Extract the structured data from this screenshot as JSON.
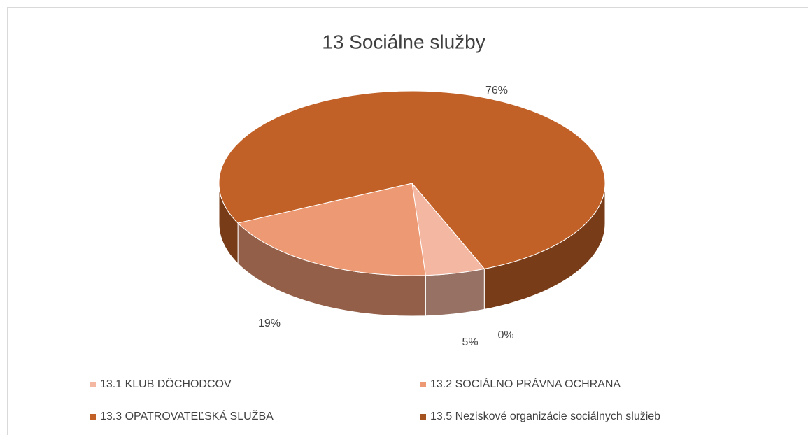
{
  "chart_data": {
    "type": "pie3d",
    "title": "13 Sociálne služby",
    "categories": [
      "13.1 KLUB DÔCHODCOV",
      "13.2 SOCIÁLNO PRÁVNA OCHRANA",
      "13.3 OPATROVATEĽSKÁ SLUŽBA",
      "13.5 Neziskové organizácie sociálnych služieb"
    ],
    "values": [
      5,
      19,
      76,
      0
    ],
    "value_labels": [
      "5%",
      "19%",
      "76%",
      "0%"
    ],
    "colors": [
      "#f4b8a2",
      "#ed9a74",
      "#c26127",
      "#a4521f"
    ],
    "legend": "bottom"
  }
}
